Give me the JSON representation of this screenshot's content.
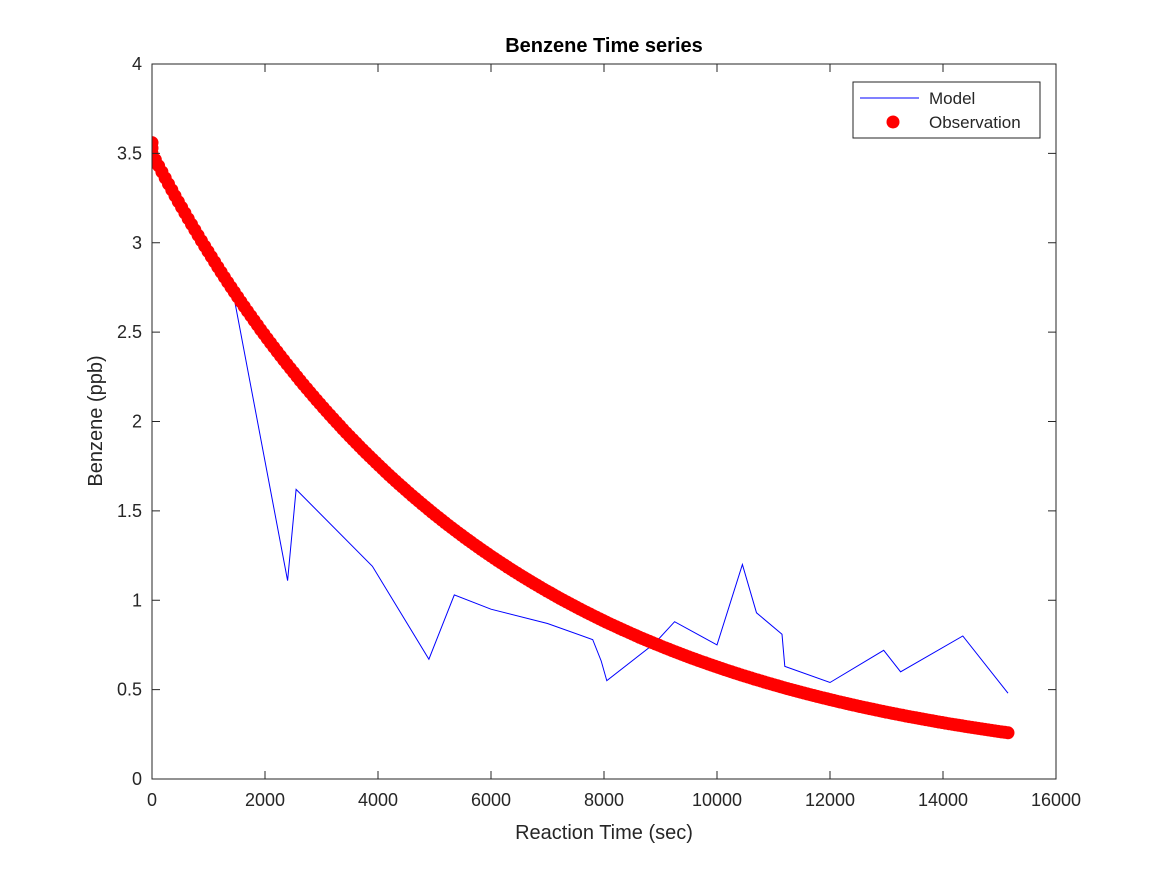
{
  "chart_data": {
    "type": "line",
    "title": "Benzene Time series",
    "xlabel": "Reaction Time (sec)",
    "ylabel": "Benzene (ppb)",
    "xlim": [
      0,
      16000
    ],
    "ylim": [
      0,
      4
    ],
    "xticks": [
      0,
      2000,
      4000,
      6000,
      8000,
      10000,
      12000,
      14000,
      16000
    ],
    "yticks": [
      0,
      0.5,
      1,
      1.5,
      2,
      2.5,
      3,
      3.5,
      4
    ],
    "xtick_labels": [
      "0",
      "2000",
      "4000",
      "6000",
      "8000",
      "10000",
      "12000",
      "14000",
      "16000"
    ],
    "ytick_labels": [
      "0",
      "0.5",
      "1",
      "1.5",
      "2",
      "2.5",
      "3",
      "3.5",
      "4"
    ],
    "grid": false,
    "legend_position": "top-right",
    "series": [
      {
        "name": "Model",
        "kind": "line",
        "color": "#0000ff",
        "x": [
          0,
          1400,
          2400,
          2550,
          3900,
          4900,
          5350,
          6000,
          7000,
          7800,
          7950,
          8050,
          8900,
          9250,
          10000,
          10450,
          10700,
          11150,
          11200,
          12000,
          12950,
          13250,
          14350,
          15150
        ],
        "y": [
          3.47,
          2.78,
          1.11,
          1.62,
          1.19,
          0.67,
          1.03,
          0.95,
          0.87,
          0.78,
          0.66,
          0.55,
          0.76,
          0.88,
          0.75,
          1.2,
          0.93,
          0.81,
          0.63,
          0.54,
          0.72,
          0.6,
          0.8,
          0.48
        ]
      },
      {
        "name": "Observation",
        "kind": "scatter",
        "color": "#ff0000",
        "x_start": 0,
        "x_end": 15150,
        "y_start": 3.5,
        "decay_rate_per_sec": 0.000172,
        "y_end": 0.26,
        "points_note": "dense markers along exponential decay from 3.5 to 0.26 ppb"
      }
    ]
  },
  "legend": {
    "items": [
      {
        "label": "Model",
        "color": "#0000ff",
        "symbol": "line"
      },
      {
        "label": "Observation",
        "color": "#ff0000",
        "symbol": "marker"
      }
    ]
  }
}
